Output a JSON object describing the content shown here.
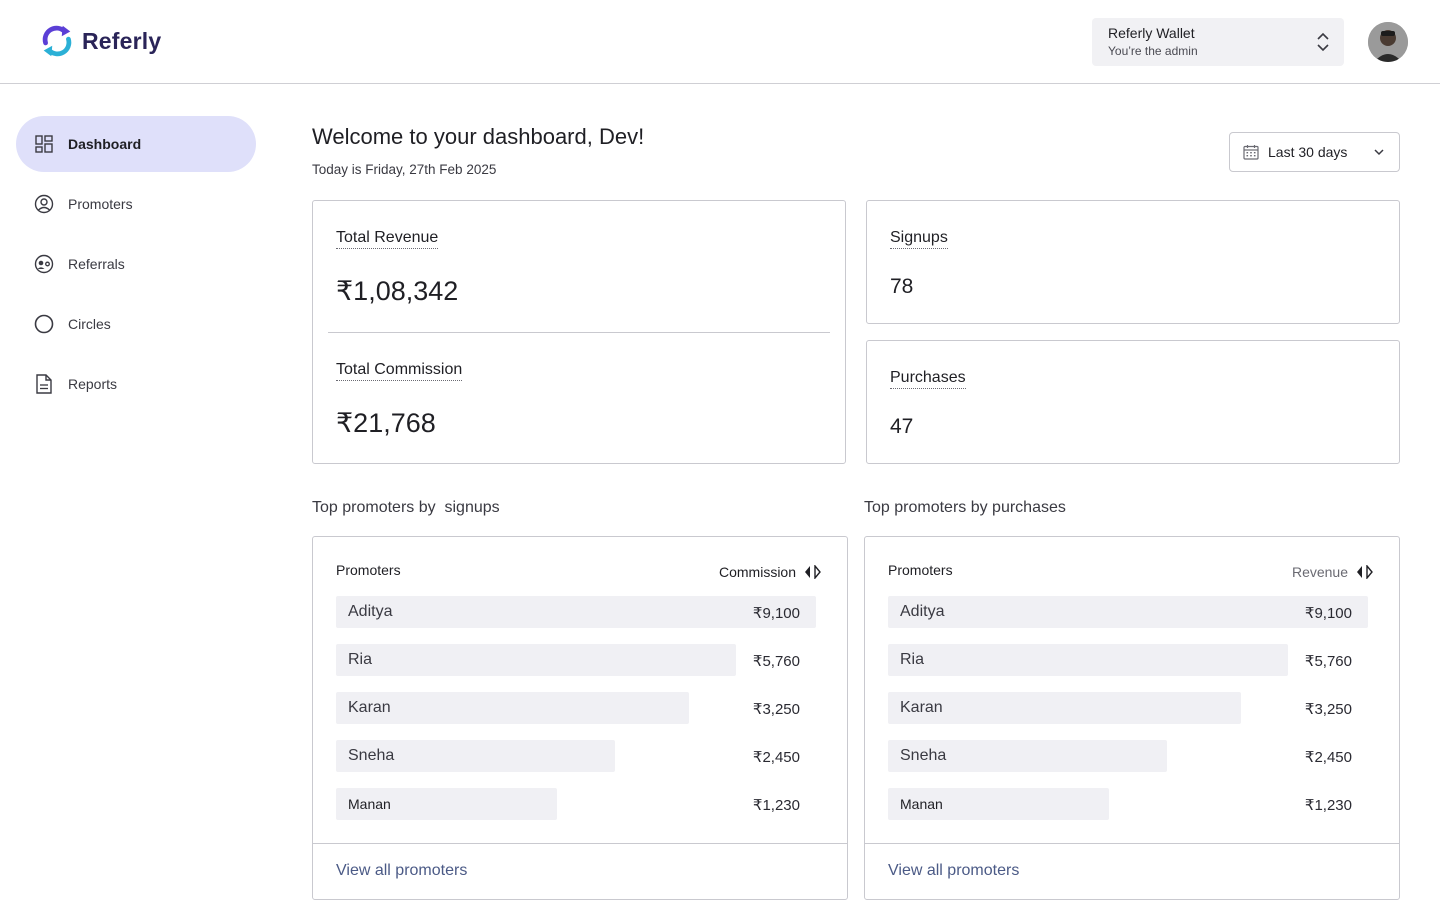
{
  "brand": {
    "name": "Referly",
    "accent": "#5b3fd6",
    "accent2": "#2bb0d6"
  },
  "header": {
    "wallet_title": "Referly Wallet",
    "wallet_subtitle": "You’re the admin"
  },
  "sidebar": {
    "items": [
      {
        "label": "Dashboard",
        "icon": "dashboard-icon",
        "active": true
      },
      {
        "label": "Promoters",
        "icon": "user-circle-icon"
      },
      {
        "label": "Referrals",
        "icon": "referrals-icon"
      },
      {
        "label": "Circles",
        "icon": "circle-icon"
      },
      {
        "label": "Reports",
        "icon": "document-icon"
      }
    ]
  },
  "main": {
    "welcome": "Welcome to your dashboard, Dev!",
    "today": "Today is Friday, 27th Feb 2025",
    "range": "Last 30 days"
  },
  "stats": {
    "total_revenue_label": "Total Revenue",
    "total_revenue_value": "₹1,08,342",
    "total_commission_label": "Total Commission",
    "total_commission_value": "₹21,768",
    "signups_label": "Signups",
    "signups_value": "78",
    "purchases_label": "Purchases",
    "purchases_value": "47"
  },
  "signups_table": {
    "section_title": "Top promoters by  signups",
    "col_left": "Promoters",
    "col_right": "Commission",
    "view_all": "View all promoters",
    "rows": [
      {
        "name": "Aditya",
        "value": "₹9,100",
        "fill": 1.0
      },
      {
        "name": "Ria",
        "value": "₹5,760",
        "fill": 0.833
      },
      {
        "name": "Karan",
        "value": "₹3,250",
        "fill": 0.735
      },
      {
        "name": "Sneha",
        "value": "₹2,450",
        "fill": 0.581
      },
      {
        "name": "Manan",
        "value": "₹1,230",
        "fill": 0.46
      }
    ]
  },
  "purchases_table": {
    "section_title": "Top promoters by purchases",
    "col_left": "Promoters",
    "col_right": "Revenue",
    "view_all": "View all promoters",
    "rows": [
      {
        "name": "Aditya",
        "value": "₹9,100",
        "fill": 1.0
      },
      {
        "name": "Ria",
        "value": "₹5,760",
        "fill": 0.833
      },
      {
        "name": "Karan",
        "value": "₹3,250",
        "fill": 0.735
      },
      {
        "name": "Sneha",
        "value": "₹2,450",
        "fill": 0.581
      },
      {
        "name": "Manan",
        "value": "₹1,230",
        "fill": 0.46
      }
    ]
  }
}
